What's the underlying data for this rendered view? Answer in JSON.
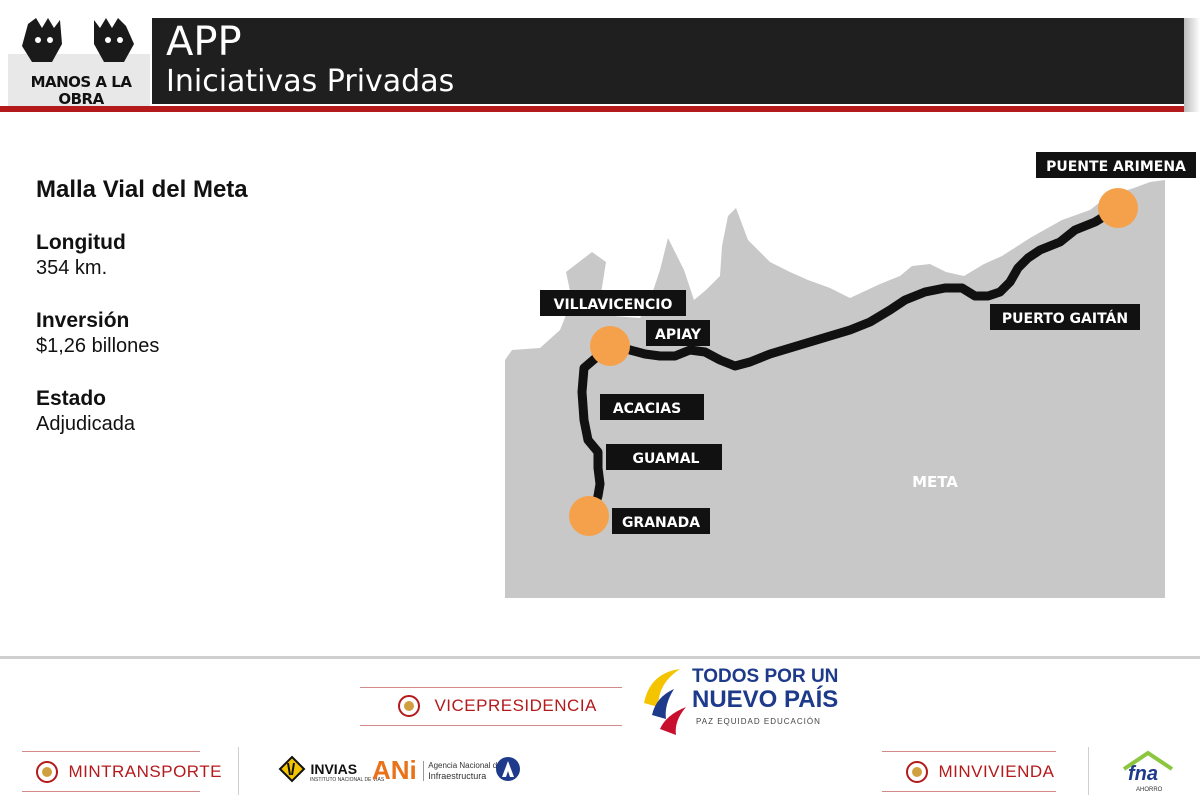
{
  "header": {
    "logo_text_line1": "MANOS A LA",
    "logo_text_line2": "OBRA",
    "title": "APP",
    "subtitle": "Iniciativas Privadas"
  },
  "project": {
    "name": "Malla Vial del Meta",
    "longitud_label": "Longitud",
    "longitud_value": "354 km.",
    "inversion_label": "Inversión",
    "inversion_value": "$1,26 billones",
    "estado_label": "Estado",
    "estado_value": "Adjudicada"
  },
  "map": {
    "region": "META",
    "places": {
      "puente_arimena": "PUENTE ARIMENA",
      "villavicencio": "VILLAVICENCIO",
      "apiay": "APIAY",
      "puerto_gaitan": "PUERTO GAITÁN",
      "acacias": "ACACIAS",
      "guamal": "GUAMAL",
      "granada": "GRANADA"
    }
  },
  "footer": {
    "vicepresidencia": "VICEPRESIDENCIA",
    "todos_line1": "TODOS POR UN",
    "todos_line2": "NUEVO PAÍS",
    "todos_line3": "PAZ  EQUIDAD  EDUCACIÓN",
    "mintransporte": "MINTRANSPORTE",
    "invias": "INVIAS",
    "invias_sub": "INSTITUTO NACIONAL DE VIAS",
    "ani": "ANi",
    "ani_sub1": "Agencia Nacional de",
    "ani_sub2": "Infraestructura",
    "minvivienda": "MINVIVIENDA",
    "fna": "fna",
    "fna_sub": "AHORRO"
  },
  "colors": {
    "header_bg": "#1f1f1f",
    "accent_red": "#b4191c",
    "map_gray": "#c8c8c8",
    "node_orange": "#f5a14b",
    "label_bg": "#111111"
  }
}
